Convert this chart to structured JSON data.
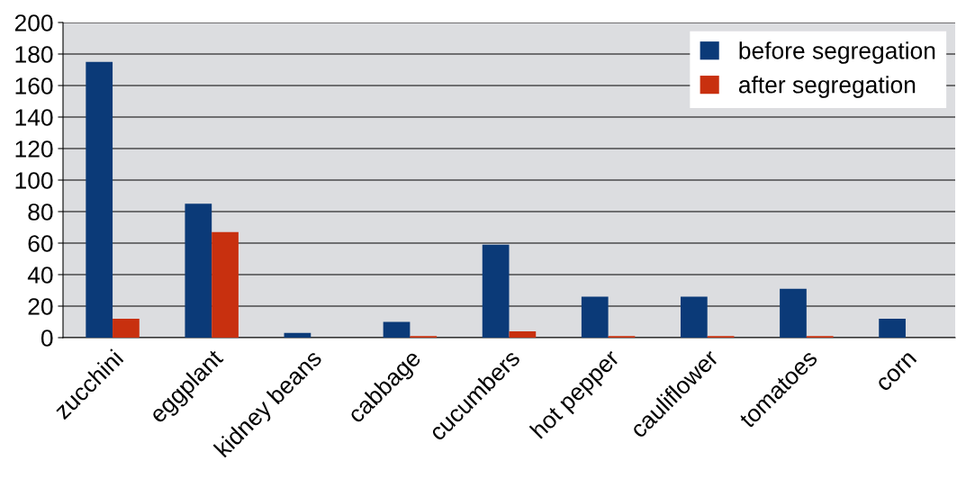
{
  "chart_data": {
    "type": "bar",
    "categories": [
      "zucchini",
      "eggplant",
      "kidney beans",
      "cabbage",
      "cucumbers",
      "hot pepper",
      "cauliflower",
      "tomatoes",
      "corn"
    ],
    "series": [
      {
        "name": "before segregation",
        "color": "#0b3a78",
        "values": [
          175,
          85,
          3,
          10,
          59,
          26,
          26,
          31,
          12
        ]
      },
      {
        "name": "after segregation",
        "color": "#c8300f",
        "values": [
          12,
          67,
          0,
          1,
          4,
          1,
          1,
          1,
          0
        ]
      }
    ],
    "ylim": [
      0,
      200
    ],
    "yticks": [
      0,
      20,
      40,
      60,
      80,
      100,
      120,
      140,
      160,
      180,
      200
    ],
    "grid": "y",
    "legend": "top right"
  }
}
